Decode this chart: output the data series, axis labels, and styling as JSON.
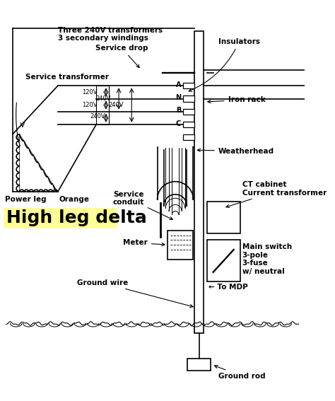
{
  "bg_color": "#ffffff",
  "title": "High leg delta",
  "title_color": "#000000",
  "title_bg": "#ffff99",
  "title_fontsize": 18,
  "line_color": "#000000",
  "lw": 1.2,
  "tlw": 2.0,
  "ann": {
    "three_transformers": "Three 240V transformers\n3 secondary windings",
    "service_drop": "Service drop",
    "service_transformer": "Service transformer",
    "insulators": "Insulators",
    "iron_rack": "Iron rack",
    "weatherhead": "Weatherhead",
    "service_conduit": "Service\nconduit",
    "ct_cabinet": "CT cabinet\nCurrent transformer",
    "meter": "Meter",
    "main_switch": "Main switch\n3-pole\n3-fuse\nw/ neutral",
    "ground_wire": "Ground wire",
    "to_mdp": "To MDP",
    "ground_rod": "Ground rod",
    "power_leg": "Power leg",
    "orange": "Orange"
  }
}
